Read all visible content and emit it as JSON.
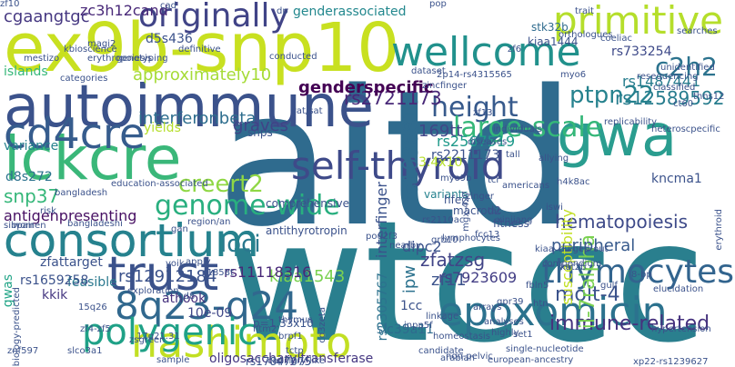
{
  "words": [
    {
      "text": "aitd",
      "color": "#2f6b8e"
    },
    {
      "text": "wtccc",
      "color": "#2a7f8e"
    },
    {
      "text": "ex9b-snp10",
      "color": "#c8e020"
    },
    {
      "text": "autoimmune",
      "color": "#3b528b"
    },
    {
      "text": "wellcome",
      "color": "#21918c"
    },
    {
      "text": "gwa",
      "color": "#2a9d8f"
    },
    {
      "text": "lckcre",
      "color": "#3ab779"
    },
    {
      "text": "self-thyroid",
      "color": "#3e4a89"
    },
    {
      "text": "consortium",
      "color": "#26828e"
    },
    {
      "text": "cd4cre",
      "color": "#365c8d"
    },
    {
      "text": "trust",
      "color": "#3b528b"
    },
    {
      "text": "8q23-q24",
      "color": "#31688e"
    },
    {
      "text": "hashimoto",
      "color": "#c2df23"
    },
    {
      "text": "epoxomicin",
      "color": "#2c728e"
    },
    {
      "text": "polygenic",
      "color": "#1fa187"
    },
    {
      "text": "originally",
      "color": "#414487"
    },
    {
      "text": "primitive",
      "color": "#b5de2b"
    },
    {
      "text": "thymocytes",
      "color": "#32648e"
    },
    {
      "text": "genome-wide",
      "color": "#29af7f"
    },
    {
      "text": "height",
      "color": "#375a8c"
    },
    {
      "text": "large-scale",
      "color": "#35b779"
    },
    {
      "text": "hematopoiesis",
      "color": "#3e4a89"
    },
    {
      "text": "creert2",
      "color": "#8fd744"
    },
    {
      "text": "c2h2",
      "color": "#2c738e"
    },
    {
      "text": "rs1036819",
      "color": "#2f6b8e"
    },
    {
      "text": "immune-related",
      "color": "#46327e"
    },
    {
      "text": "molt-4",
      "color": "#3b528b"
    },
    {
      "text": "ptpn22",
      "color": "#26828e"
    },
    {
      "text": "rs2721173",
      "color": "#482878"
    },
    {
      "text": "rs12589592",
      "color": "#287d8e"
    },
    {
      "text": "loci",
      "color": "#2a788e"
    },
    {
      "text": "approximately10",
      "color": "#a5db36"
    },
    {
      "text": "interferonbeta",
      "color": "#2e6e8e"
    },
    {
      "text": "consortium",
      "color": "#26828e"
    },
    {
      "text": "kiaa1543",
      "color": "#7ad151"
    },
    {
      "text": "rs12912184",
      "color": "#3b528b"
    },
    {
      "text": "il-7ralpha",
      "color": "#7ad151"
    },
    {
      "text": "rs11118316",
      "color": "#482878"
    },
    {
      "text": "peripheral",
      "color": "#375a8c"
    },
    {
      "text": "rs7923609",
      "color": "#433e85"
    },
    {
      "text": "genderspecific",
      "color": "#440154"
    },
    {
      "text": "genderassociated",
      "color": "#23888e"
    },
    {
      "text": "zc3h12cand",
      "color": "#482878"
    },
    {
      "text": "cgaangtgc",
      "color": "#453781"
    },
    {
      "text": "rs2567519",
      "color": "#1f998a"
    },
    {
      "text": "rs733254",
      "color": "#3e4a89"
    },
    {
      "text": "rs1487441",
      "color": "#287d8e"
    },
    {
      "text": "d5s436",
      "color": "#3b528b"
    },
    {
      "text": "d8s272",
      "color": "#2c728e"
    },
    {
      "text": "snp37",
      "color": "#35b779"
    },
    {
      "text": "graves",
      "color": "#404387"
    },
    {
      "text": "169tt",
      "color": "#3f4788"
    },
    {
      "text": "3.4x10",
      "color": "#b5de2b"
    },
    {
      "text": "kncma1",
      "color": "#3b528b"
    },
    {
      "text": "antigenpresenting",
      "color": "#471063"
    },
    {
      "text": "zfattarget",
      "color": "#3b528b"
    },
    {
      "text": "feasible",
      "color": "#2a788e"
    },
    {
      "text": "rs1659258",
      "color": "#3b528b"
    },
    {
      "text": "gwas",
      "color": "#20a486"
    },
    {
      "text": "kkik",
      "color": "#453781"
    },
    {
      "text": "athook",
      "color": "#46327e"
    },
    {
      "text": "10e-09",
      "color": "#3f4788"
    },
    {
      "text": "p=1.33x10",
      "color": "#3a548c"
    },
    {
      "text": "zfatzsg",
      "color": "#414487"
    },
    {
      "text": "zf11",
      "color": "#3b528b"
    },
    {
      "text": "ipw",
      "color": "#2c728e"
    },
    {
      "text": "dipc2",
      "color": "#3b528b"
    },
    {
      "text": "slc39a11",
      "color": "#2f6b8e"
    },
    {
      "text": "rs2305767",
      "color": "#2c728e"
    },
    {
      "text": "interfinger",
      "color": "#3b528b"
    },
    {
      "text": "susceptibility",
      "color": "#c2df23"
    },
    {
      "text": "1cc",
      "color": "#3b528b"
    },
    {
      "text": "variants",
      "color": "#26828e"
    },
    {
      "text": "hfe2",
      "color": "#3b528b"
    },
    {
      "text": "macrod2",
      "color": "#3b528b"
    },
    {
      "text": "myo9b",
      "color": "#3b528b"
    },
    {
      "text": "kiaa1444",
      "color": "#3b528b"
    },
    {
      "text": "stk32b",
      "color": "#2f6b8e"
    },
    {
      "text": "oligosaccharyltransferase",
      "color": "#453781"
    },
    {
      "text": "rs17847075",
      "color": "#3b528b"
    },
    {
      "text": "comprehensive",
      "color": "#3b528b"
    },
    {
      "text": "antithyrotropin",
      "color": "#3b528b"
    },
    {
      "text": "variance",
      "color": "#26828e"
    },
    {
      "text": "islands",
      "color": "#35b779"
    },
    {
      "text": "yields",
      "color": "#b5de2b"
    },
    {
      "text": "bangladesh",
      "color": "#3b528b"
    },
    {
      "text": "fitness",
      "color": "#3b528b"
    },
    {
      "text": "kiaa",
      "color": "#3b528b"
    },
    {
      "text": "snps",
      "color": "#3b528b"
    },
    {
      "text": "dataset",
      "color": "#3b528b"
    },
    {
      "text": "rs2211173",
      "color": "#3b528b"
    },
    {
      "text": "genotyping",
      "color": "#3b528b"
    },
    {
      "text": "kbioscience",
      "color": "#3b528b"
    },
    {
      "text": "definitive",
      "color": "#3b528b"
    },
    {
      "text": "cad",
      "color": "#3b528b"
    },
    {
      "text": "conducted",
      "color": "#3b528b"
    },
    {
      "text": "dp",
      "color": "#3b528b"
    },
    {
      "text": "orthologues",
      "color": "#3b528b"
    },
    {
      "text": "coeliac",
      "color": "#3b528b"
    },
    {
      "text": "resequencing",
      "color": "#3b528b"
    },
    {
      "text": "classified",
      "color": "#3b528b"
    },
    {
      "text": "unidentified",
      "color": "#3b528b"
    },
    {
      "text": "searches",
      "color": "#3b528b"
    },
    {
      "text": "ct60",
      "color": "#3b528b"
    },
    {
      "text": "thns12",
      "color": "#3b528b"
    },
    {
      "text": "replicability",
      "color": "#3b528b"
    },
    {
      "text": "heteroscpecific",
      "color": "#3b528b"
    },
    {
      "text": "trait",
      "color": "#3b528b"
    },
    {
      "text": "zf6",
      "color": "#3b528b"
    },
    {
      "text": "pop",
      "color": "#3b528b"
    },
    {
      "text": "myo6",
      "color": "#3b528b"
    },
    {
      "text": "elucidation",
      "color": "#3b528b"
    },
    {
      "text": "hypertension",
      "color": "#3b528b"
    },
    {
      "text": "erythroid",
      "color": "#3b528b"
    },
    {
      "text": "xp22-rs1239627",
      "color": "#3b528b"
    },
    {
      "text": "single-nucleotide",
      "color": "#3b528b"
    },
    {
      "text": "candidate",
      "color": "#3b528b"
    },
    {
      "text": "arabian",
      "color": "#3b528b"
    },
    {
      "text": "zf4-zf5",
      "color": "#3b528b"
    },
    {
      "text": "sample",
      "color": "#3b528b"
    },
    {
      "text": "zsgreen",
      "color": "#3b528b"
    },
    {
      "text": "slco3a1",
      "color": "#3b528b"
    },
    {
      "text": "znf597",
      "color": "#3b528b"
    },
    {
      "text": "exploration",
      "color": "#3b528b"
    },
    {
      "text": "sibpair",
      "color": "#3b528b"
    },
    {
      "text": "mestizo",
      "color": "#3b528b"
    },
    {
      "text": "categories",
      "color": "#3b528b"
    },
    {
      "text": "risk",
      "color": "#3b528b"
    },
    {
      "text": "women",
      "color": "#3b528b"
    },
    {
      "text": "bangladeshi",
      "color": "#3b528b"
    },
    {
      "text": "region/an",
      "color": "#3b528b"
    },
    {
      "text": "apply",
      "color": "#3b528b"
    },
    {
      "text": "yoik",
      "color": "#3b528b"
    },
    {
      "text": "gan",
      "color": "#3b528b"
    },
    {
      "text": "c1858t",
      "color": "#3b528b"
    },
    {
      "text": "cd8",
      "color": "#3b528b"
    },
    {
      "text": "thymus",
      "color": "#3b528b"
    },
    {
      "text": "fitm2",
      "color": "#3b528b"
    },
    {
      "text": "tctp",
      "color": "#3b528b"
    },
    {
      "text": "brpf1",
      "color": "#3b528b"
    },
    {
      "text": "fbln5",
      "color": "#3b528b"
    },
    {
      "text": "gpr39",
      "color": "#3b528b"
    },
    {
      "text": "set1",
      "color": "#3b528b"
    },
    {
      "text": "analyses",
      "color": "#3b528b"
    },
    {
      "text": "highly",
      "color": "#3b528b"
    },
    {
      "text": "arrays",
      "color": "#3b528b"
    },
    {
      "text": "htn",
      "color": "#3b528b"
    },
    {
      "text": "gulf",
      "color": "#3b528b"
    },
    {
      "text": "8-bp",
      "color": "#3b528b"
    },
    {
      "text": "kat2b",
      "color": "#3b528b"
    },
    {
      "text": "bulged-out",
      "color": "#3b528b"
    },
    {
      "text": "xinjiang",
      "color": "#3b528b"
    },
    {
      "text": "iswi",
      "color": "#3b528b"
    },
    {
      "text": "h4k8ac",
      "color": "#3b528b"
    },
    {
      "text": "allying",
      "color": "#3b528b"
    },
    {
      "text": "tall",
      "color": "#3b528b"
    },
    {
      "text": "diseases",
      "color": "#3b528b"
    },
    {
      "text": "tcr",
      "color": "#3b528b"
    },
    {
      "text": "zinger",
      "color": "#3b528b"
    },
    {
      "text": "nearby",
      "color": "#3b528b"
    },
    {
      "text": "inpp5f",
      "color": "#3b528b"
    },
    {
      "text": "homeostasis",
      "color": "#3b528b"
    },
    {
      "text": "grb10",
      "color": "#3b528b"
    },
    {
      "text": "linkage",
      "color": "#3b528b"
    },
    {
      "text": "cd3zeta",
      "color": "#3b528b"
    },
    {
      "text": "biology-predicted",
      "color": "#3b528b"
    },
    {
      "text": "magi2",
      "color": "#3b528b"
    },
    {
      "text": "erythropoiesis",
      "color": "#3b528b"
    },
    {
      "text": "education-associated",
      "color": "#3b528b"
    },
    {
      "text": "zincfinger",
      "color": "#3b528b"
    },
    {
      "text": "2p14-rs4315565",
      "color": "#3b528b"
    },
    {
      "text": "vat/sat",
      "color": "#3b528b"
    },
    {
      "text": "lymphocytes",
      "color": "#3b528b"
    },
    {
      "text": "mgx-427",
      "color": "#3b528b"
    },
    {
      "text": "zf13",
      "color": "#3b528b"
    },
    {
      "text": "rs2110ac",
      "color": "#3b528b"
    },
    {
      "text": "pou2f3",
      "color": "#3b528b"
    },
    {
      "text": "capillary-like",
      "color": "#3b528b"
    },
    {
      "text": "17q21.31",
      "color": "#3b528b"
    },
    {
      "text": "15q26",
      "color": "#3b528b"
    },
    {
      "text": "non-pelvic",
      "color": "#3b528b"
    },
    {
      "text": "european-ancestry",
      "color": "#3b528b"
    },
    {
      "text": "americans",
      "color": "#3b528b"
    },
    {
      "text": "compendium",
      "color": "#3b528b"
    },
    {
      "text": "individuals",
      "color": "#3b528b"
    },
    {
      "text": "tac",
      "color": "#3b528b"
    },
    {
      "text": "fcc13",
      "color": "#3b528b"
    },
    {
      "text": "zf10",
      "color": "#3b528b"
    }
  ]
}
